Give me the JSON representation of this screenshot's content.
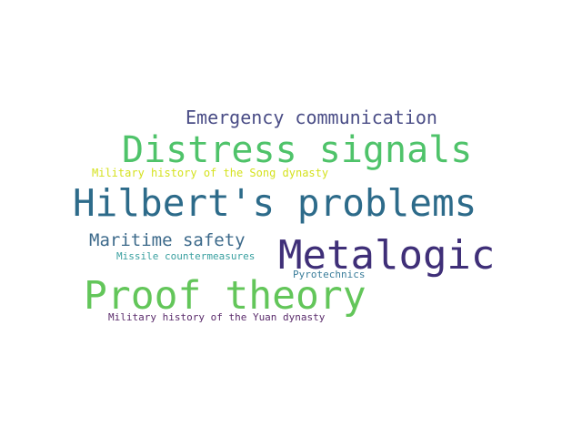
{
  "wordcloud": {
    "words": [
      {
        "text": "Emergency communication",
        "color": "#4a4d86"
      },
      {
        "text": "Distress signals",
        "color": "#4fc36a"
      },
      {
        "text": "Military history of the Song dynasty",
        "color": "#d5e21f"
      },
      {
        "text": "Hilbert's problems",
        "color": "#2d6b8a"
      },
      {
        "text": "Maritime safety",
        "color": "#3d6a8b"
      },
      {
        "text": "Metalogic",
        "color": "#3f2f78"
      },
      {
        "text": "Missile countermeasures",
        "color": "#3aa0a0"
      },
      {
        "text": "Pyrotechnics",
        "color": "#3a7d9a"
      },
      {
        "text": "Proof theory",
        "color": "#63c65a"
      },
      {
        "text": "Military history of the Yuan dynasty",
        "color": "#5a2b6b"
      }
    ]
  }
}
